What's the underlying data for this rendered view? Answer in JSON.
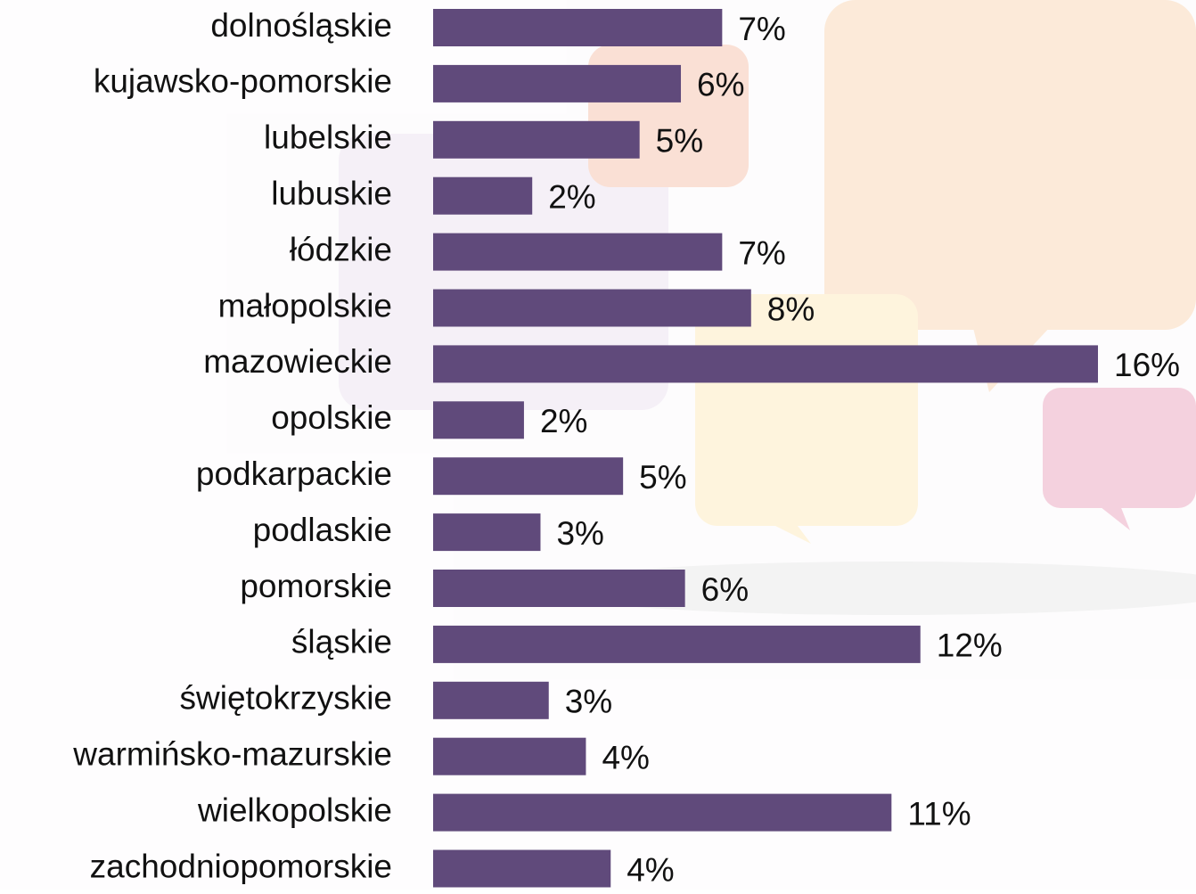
{
  "chart_data": {
    "type": "bar",
    "orientation": "horizontal",
    "categories": [
      "dolnośląskie",
      "kujawsko-pomorskie",
      "lubelskie",
      "lubuskie",
      "łódzkie",
      "małopolskie",
      "mazowieckie",
      "opolskie",
      "podkarpackie",
      "podlaskie",
      "pomorskie",
      "śląskie",
      "świętokrzyskie",
      "warmińsko-mazurskie",
      "wielkopolskie",
      "zachodniopomorskie"
    ],
    "values": [
      7.0,
      6.0,
      5.0,
      2.4,
      7.0,
      7.7,
      16.1,
      2.2,
      4.6,
      2.6,
      6.1,
      11.8,
      2.8,
      3.7,
      11.1,
      4.3
    ],
    "value_labels": [
      "7%",
      "6%",
      "5%",
      "2%",
      "7%",
      "8%",
      "16%",
      "2%",
      "5%",
      "3%",
      "6%",
      "12%",
      "3%",
      "4%",
      "11%",
      "4%"
    ],
    "color": "#604a7b"
  }
}
